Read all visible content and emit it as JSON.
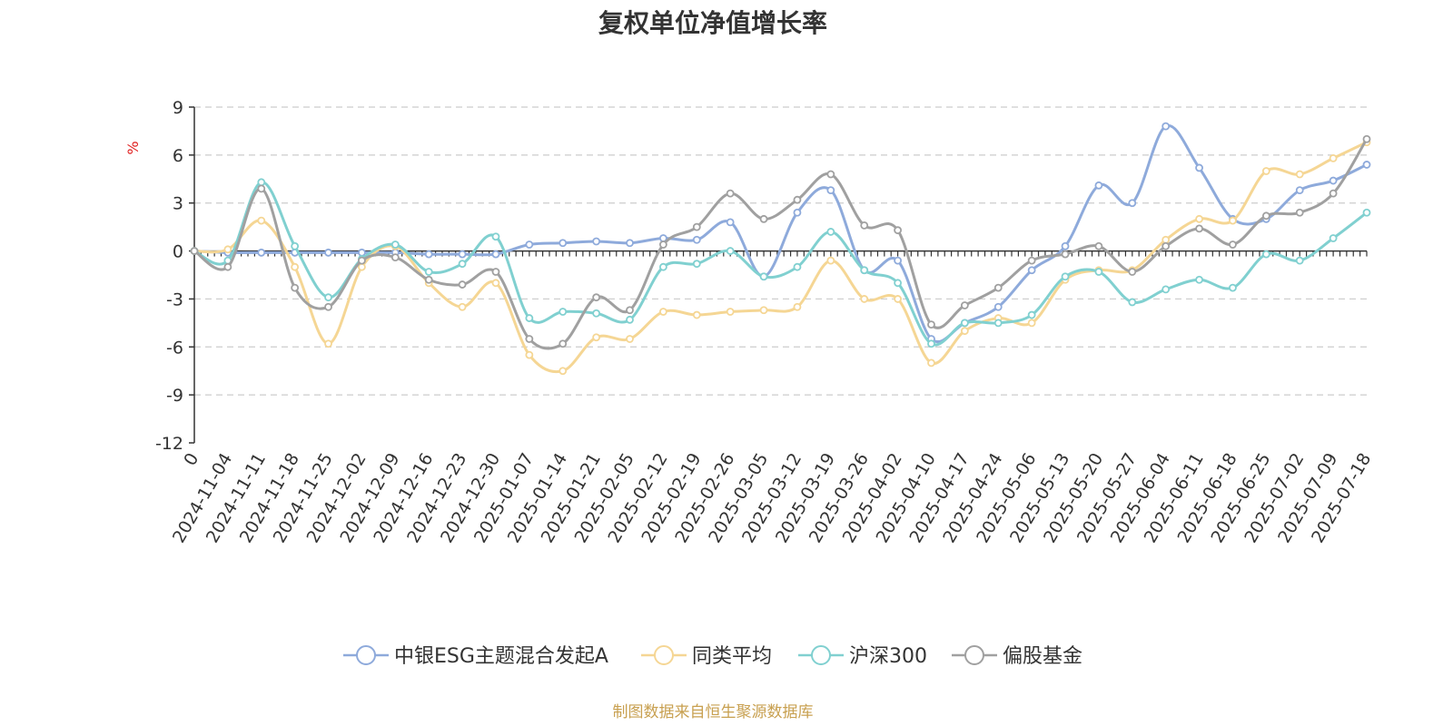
{
  "chart_data": {
    "type": "line",
    "title": "复权单位净值增长率",
    "y_unit": "%",
    "ylim": [
      -12,
      9
    ],
    "y_ticks": [
      9,
      6,
      3,
      0,
      -3,
      -6,
      -9,
      -12
    ],
    "grid": true,
    "legend_position": "bottom",
    "source": "制图数据来自恒生聚源数据库",
    "categories": [
      "0",
      "2024-11-04",
      "2024-11-11",
      "2024-11-18",
      "2024-11-25",
      "2024-12-02",
      "2024-12-09",
      "2024-12-16",
      "2024-12-23",
      "2024-12-30",
      "2025-01-07",
      "2025-01-14",
      "2025-01-21",
      "2025-02-05",
      "2025-02-12",
      "2025-02-19",
      "2025-02-26",
      "2025-03-05",
      "2025-03-12",
      "2025-03-19",
      "2025-03-26",
      "2025-04-02",
      "2025-04-10",
      "2025-04-17",
      "2025-04-24",
      "2025-05-06",
      "2025-05-13",
      "2025-05-20",
      "2025-05-27",
      "2025-06-04",
      "2025-06-11",
      "2025-06-18",
      "2025-06-25",
      "2025-07-02",
      "2025-07-09",
      "2025-07-18"
    ],
    "series": [
      {
        "name": "中银ESG主题混合发起A",
        "color": "#8eaadb",
        "values": [
          0,
          -0.1,
          -0.1,
          -0.1,
          -0.1,
          -0.1,
          -0.1,
          -0.2,
          -0.2,
          -0.2,
          0.4,
          0.5,
          0.6,
          0.5,
          0.8,
          0.7,
          1.8,
          -1.6,
          2.4,
          3.8,
          -1.2,
          -0.6,
          -5.5,
          -4.5,
          -3.5,
          -1.2,
          0.3,
          4.1,
          3.0,
          7.8,
          5.2,
          2.0,
          2.0,
          3.8,
          4.4,
          5.4
        ]
      },
      {
        "name": "同类平均",
        "color": "#f5d694",
        "values": [
          0,
          0.1,
          1.9,
          -1.0,
          -5.8,
          -1.0,
          0.3,
          -2.0,
          -3.5,
          -2.0,
          -6.5,
          -7.5,
          -5.4,
          -5.5,
          -3.8,
          -4.0,
          -3.8,
          -3.7,
          -3.5,
          -0.6,
          -3.0,
          -3.0,
          -7.0,
          -5.0,
          -4.2,
          -4.5,
          -1.8,
          -1.2,
          -1.2,
          0.7,
          2.0,
          1.9,
          5.0,
          4.8,
          5.8,
          6.8
        ]
      },
      {
        "name": "沪深300",
        "color": "#80d0d0",
        "values": [
          0,
          -0.6,
          4.3,
          0.3,
          -2.9,
          -0.5,
          0.4,
          -1.3,
          -0.8,
          0.9,
          -4.2,
          -3.8,
          -3.9,
          -4.3,
          -1.0,
          -0.8,
          0.0,
          -1.6,
          -1.0,
          1.2,
          -1.2,
          -2.0,
          -5.8,
          -4.5,
          -4.5,
          -4.0,
          -1.6,
          -1.3,
          -3.2,
          -2.4,
          -1.8,
          -2.3,
          -0.2,
          -0.6,
          0.8,
          2.4
        ]
      },
      {
        "name": "偏股基金",
        "color": "#a0a0a0",
        "values": [
          0,
          -1.0,
          3.9,
          -2.3,
          -3.5,
          -0.6,
          -0.4,
          -1.8,
          -2.1,
          -1.3,
          -5.5,
          -5.8,
          -2.9,
          -3.7,
          0.4,
          1.5,
          3.6,
          2.0,
          3.2,
          4.8,
          1.6,
          1.3,
          -4.6,
          -3.4,
          -2.3,
          -0.6,
          -0.2,
          0.3,
          -1.3,
          0.3,
          1.4,
          0.4,
          2.2,
          2.4,
          3.6,
          7.0
        ]
      }
    ]
  }
}
